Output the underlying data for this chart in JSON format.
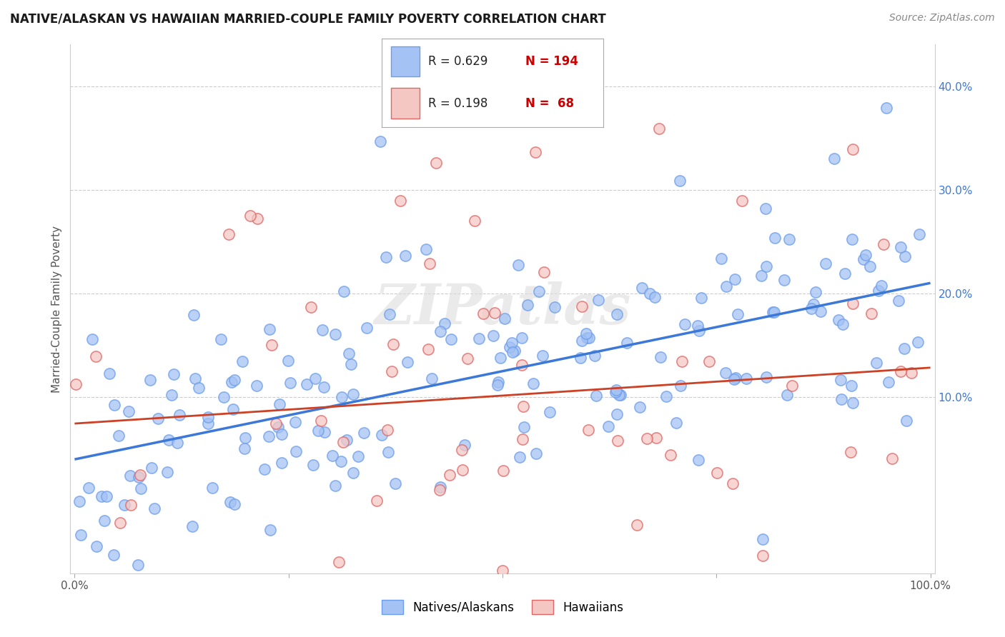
{
  "title": "NATIVE/ALASKAN VS HAWAIIAN MARRIED-COUPLE FAMILY POVERTY CORRELATION CHART",
  "source": "Source: ZipAtlas.com",
  "ylabel": "Married-Couple Family Poverty",
  "blue_color": "#a4c2f4",
  "blue_edge_color": "#6d9eeb",
  "blue_line_color": "#3c78d8",
  "pink_color": "#f4c7c3",
  "pink_edge_color": "#e06666",
  "pink_line_color": "#cc4125",
  "R_blue": 0.629,
  "N_blue": 194,
  "R_pink": 0.198,
  "N_pink": 68,
  "legend_R_color": "#3c78d8",
  "legend_N_color": "#cc0000",
  "watermark": "ZIPatlas",
  "ytick_color": "#3c78d8",
  "grid_color": "#cccccc"
}
